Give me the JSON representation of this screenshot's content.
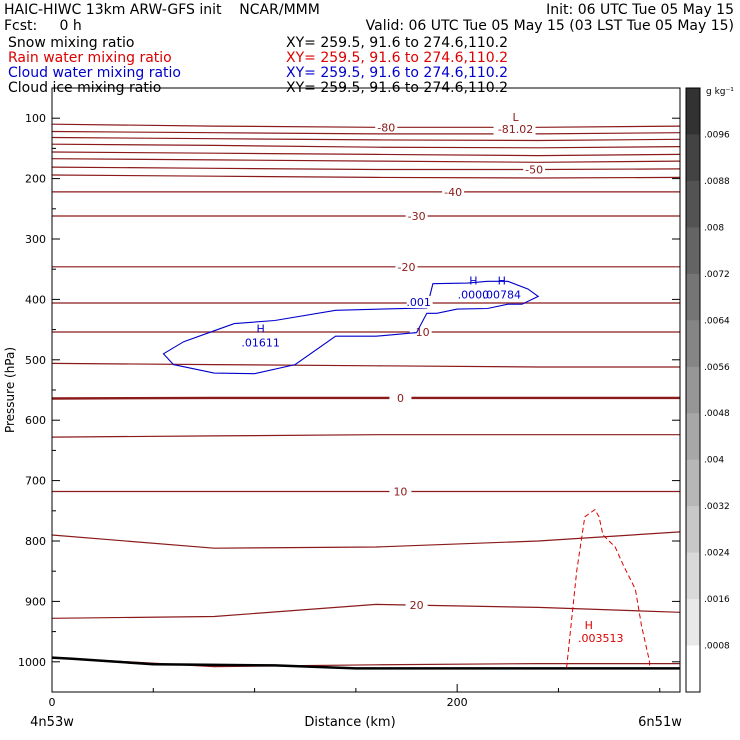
{
  "header": {
    "line1_left": "HAIC-HIWC 13km ARW-GFS init    NCAR/MMM",
    "line1_right": "Init: 06 UTC Tue 05 May 15",
    "line2_left": "Fcst:     0 h",
    "line2_right": "Valid: 06 UTC Tue 05 May 15 (03 LST Tue 05 May 15)"
  },
  "fields": [
    {
      "name": "Snow mixing ratio",
      "xy": "XY= 259.5, 91.6 to 274.6,110.2",
      "color": "#000000"
    },
    {
      "name": "Rain water mixing ratio",
      "xy": "XY= 259.5, 91.6 to 274.6,110.2",
      "color": "#dd0000"
    },
    {
      "name": "Cloud water mixing ratio",
      "xy": "XY= 259.5, 91.6 to 274.6,110.2",
      "color": "#0000cc"
    },
    {
      "name": "Cloud ice mixing ratio",
      "xy": "XY= 259.5, 91.6 to 274.6,110.2",
      "color": "#000000"
    }
  ],
  "chart_data": {
    "type": "cross-section contour",
    "xlabel": "Distance (km)",
    "ylabel": "Pressure (hPa)",
    "x_ticks": [
      0,
      200
    ],
    "xlim": [
      0,
      310
    ],
    "y_ticks": [
      100,
      200,
      300,
      400,
      500,
      600,
      700,
      800,
      900,
      1000
    ],
    "ylim": [
      1050,
      50
    ],
    "x_endpoint_left": "4n53w",
    "x_endpoint_right": "6n51w",
    "temperature_contours": [
      {
        "label": "-80",
        "label_x": 165,
        "p": [
          110,
          113,
          115,
          115,
          113
        ]
      },
      {
        "label": "",
        "p": [
          122,
          124,
          126,
          126,
          124
        ]
      },
      {
        "label": "",
        "p": [
          132,
          134,
          136,
          137,
          135
        ]
      },
      {
        "label": "",
        "p": [
          143,
          145,
          148,
          149,
          147
        ]
      },
      {
        "label": "",
        "p": [
          156,
          158,
          160,
          162,
          160
        ]
      },
      {
        "label": "",
        "p": [
          167,
          169,
          171,
          173,
          171
        ]
      },
      {
        "label": "-50",
        "label_x": 238,
        "p": [
          181,
          183,
          185,
          185,
          184
        ]
      },
      {
        "label": "",
        "p": [
          194,
          196,
          198,
          199,
          198
        ]
      },
      {
        "label": "-40",
        "label_x": 198,
        "p": [
          222,
          222,
          222,
          222,
          222
        ]
      },
      {
        "label": "-30",
        "label_x": 180,
        "p": [
          262,
          262,
          262,
          262,
          262
        ]
      },
      {
        "label": "-20",
        "label_x": 175,
        "p": [
          346,
          346,
          346,
          346,
          346
        ]
      },
      {
        "label": "",
        "p": [
          406,
          406,
          406,
          406,
          406
        ]
      },
      {
        "label": "-10",
        "label_x": 182,
        "p": [
          454,
          454,
          454,
          454,
          454
        ]
      },
      {
        "label": "",
        "p": [
          506,
          508,
          510,
          512,
          512
        ]
      },
      {
        "label": "0",
        "label_x": 172,
        "p": [
          564,
          563,
          563,
          563,
          563
        ]
      },
      {
        "label": "",
        "p": [
          628,
          626,
          624,
          624,
          624
        ]
      },
      {
        "label": "10",
        "label_x": 172,
        "p": [
          718,
          718,
          718,
          718,
          718
        ]
      },
      {
        "label": "",
        "p": [
          790,
          812,
          810,
          800,
          785
        ]
      },
      {
        "label": "20",
        "label_x": 180,
        "p": [
          928,
          925,
          905,
          910,
          918
        ]
      },
      {
        "label": "",
        "p": [
          993,
          1008,
          1005,
          1003,
          1003
        ]
      }
    ],
    "temperature_contour_x": [
      0,
      80,
      160,
      240,
      310
    ],
    "max_label": {
      "text": "L",
      "value": "-81.02",
      "x": 215,
      "p": 105
    },
    "ground": {
      "x": [
        0,
        10,
        50,
        110,
        150,
        200,
        250,
        310
      ],
      "p": [
        993,
        995,
        1004,
        1006,
        1011,
        1011,
        1011,
        1011
      ]
    },
    "cloud_water_contour": {
      "label": ".001",
      "x": [
        55,
        65,
        80,
        90,
        110,
        140,
        185,
        188,
        205,
        215,
        225,
        235,
        240,
        232,
        225,
        215,
        200,
        190,
        185,
        180,
        160,
        140,
        120,
        100,
        80,
        60,
        55
      ],
      "p": [
        490,
        470,
        452,
        440,
        435,
        418,
        414,
        374,
        373,
        370,
        370,
        383,
        395,
        408,
        408,
        415,
        416,
        423,
        423,
        455,
        461,
        461,
        508,
        523,
        522,
        508,
        490
      ]
    },
    "cloud_water_maxima": [
      {
        "text": "H",
        "value": ".01611",
        "x": 103,
        "p": 475
      },
      {
        "text": "H",
        "value": ".0000",
        "x": 208,
        "p": 395
      },
      {
        "text": "H",
        "value": ".00784",
        "x": 222,
        "p": 395
      }
    ],
    "rain_water_contour": {
      "x": [
        254,
        259,
        263,
        268,
        270,
        272,
        278,
        282,
        288,
        291,
        295,
        295
      ],
      "p": [
        1010,
        850,
        760,
        748,
        760,
        790,
        810,
        840,
        880,
        940,
        1000,
        1010
      ]
    },
    "rain_water_max": {
      "text": "H",
      "value": ".003513",
      "x": 260,
      "p": 962
    },
    "colorbar": {
      "unit": "g kg⁻¹",
      "ticks": [
        ".0096",
        ".0088",
        ".008",
        ".0072",
        ".0064",
        ".0056",
        ".0048",
        ".004",
        ".0032",
        ".0024",
        ".0016",
        ".0008"
      ]
    }
  }
}
